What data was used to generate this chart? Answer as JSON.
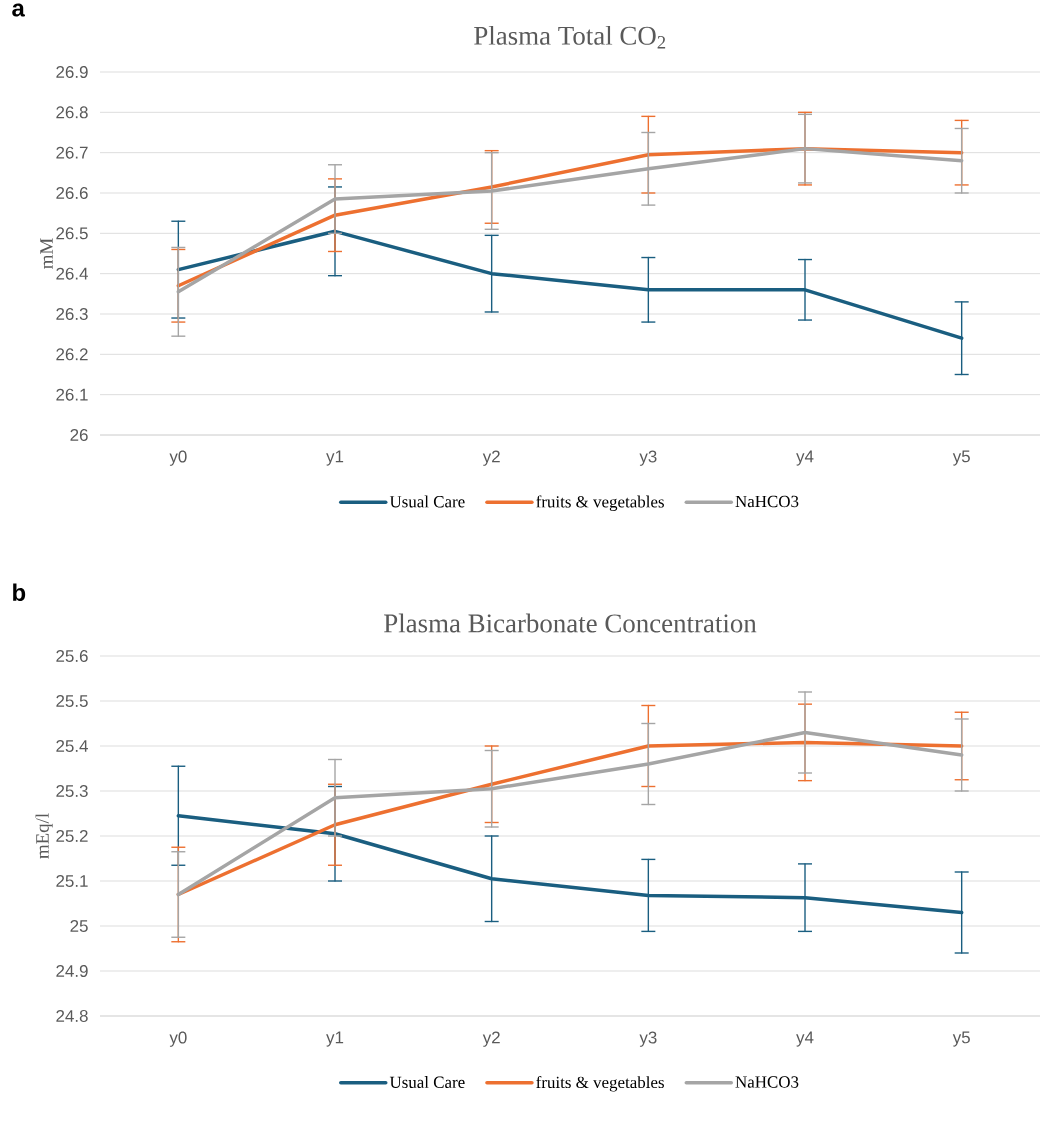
{
  "chart_data": [
    {
      "type": "line",
      "title": "Plasma Total CO$_{2}$",
      "ylabel": "mM",
      "annotations": [
        "a"
      ],
      "categories": [
        "y0",
        "y1",
        "y2",
        "y3",
        "y4",
        "y5"
      ],
      "ylim": [
        26,
        26.9
      ],
      "yticks": [
        26,
        26.1,
        26.2,
        26.3,
        26.4,
        26.5,
        26.6,
        26.7,
        26.8,
        26.9
      ],
      "grid": "y",
      "legend": "bottom",
      "series": [
        {
          "name": "Usual Care",
          "color": "#1a5e80",
          "values": [
            26.41,
            26.505,
            26.4,
            26.36,
            26.36,
            26.24
          ],
          "errors": [
            0.12,
            0.11,
            0.095,
            0.08,
            0.075,
            0.09
          ]
        },
        {
          "name": "fruits & vegetables",
          "color": "#ed7030",
          "values": [
            26.37,
            26.545,
            26.615,
            26.695,
            26.71,
            26.7
          ],
          "errors": [
            0.09,
            0.09,
            0.09,
            0.095,
            0.09,
            0.08
          ]
        },
        {
          "name": "NaHCO3",
          "color": "#a5a5a5",
          "values": [
            26.355,
            26.585,
            26.605,
            26.66,
            26.71,
            26.68
          ],
          "errors": [
            0.11,
            0.085,
            0.095,
            0.09,
            0.085,
            0.08
          ]
        }
      ]
    },
    {
      "type": "line",
      "title": "Plasma Bicarbonate Concentration",
      "ylabel": "mEq/l",
      "annotations": [
        "b"
      ],
      "categories": [
        "y0",
        "y1",
        "y2",
        "y3",
        "y4",
        "y5"
      ],
      "ylim": [
        24.8,
        25.6
      ],
      "yticks": [
        24.8,
        24.9,
        25,
        25.1,
        25.2,
        25.3,
        25.4,
        25.5,
        25.6
      ],
      "grid": "y",
      "legend": "bottom",
      "series": [
        {
          "name": "Usual Care",
          "color": "#1a5e80",
          "values": [
            25.245,
            25.205,
            25.105,
            25.068,
            25.063,
            25.03
          ],
          "errors": [
            0.11,
            0.105,
            0.095,
            0.08,
            0.075,
            0.09
          ]
        },
        {
          "name": "fruits & vegetables",
          "color": "#ed7030",
          "values": [
            25.07,
            25.225,
            25.315,
            25.4,
            25.408,
            25.4
          ],
          "errors": [
            0.105,
            0.09,
            0.085,
            0.09,
            0.085,
            0.075
          ]
        },
        {
          "name": "NaHCO3",
          "color": "#a5a5a5",
          "values": [
            25.07,
            25.285,
            25.305,
            25.36,
            25.43,
            25.38
          ],
          "errors": [
            0.095,
            0.085,
            0.085,
            0.09,
            0.09,
            0.08
          ]
        }
      ]
    }
  ]
}
